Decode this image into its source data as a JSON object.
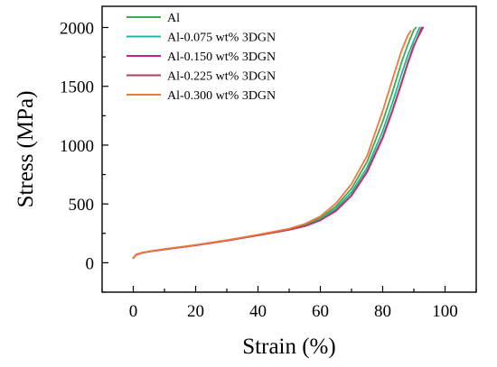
{
  "chart_data": {
    "type": "line",
    "title": "",
    "xlabel": "Strain (%)",
    "ylabel": "Stress (MPa)",
    "xlim": [
      -10,
      110
    ],
    "ylim": [
      -250,
      2180
    ],
    "xticks": [
      0,
      20,
      40,
      60,
      80,
      100
    ],
    "yticks": [
      0,
      500,
      1000,
      1500,
      2000
    ],
    "x_tick_labels": [
      "0",
      "20",
      "40",
      "60",
      "80",
      "100"
    ],
    "y_tick_labels": [
      "0",
      "500",
      "1000",
      "1500",
      "2000"
    ],
    "grid": false,
    "legend_position": "top-left",
    "series": [
      {
        "name": "Al",
        "color": "#3daa55",
        "x": [
          0,
          1,
          3,
          5,
          10,
          20,
          30,
          40,
          50,
          55,
          60,
          65,
          70,
          75,
          80,
          83,
          86,
          88,
          90,
          90.7
        ],
        "y": [
          40,
          70,
          85,
          95,
          115,
          150,
          190,
          235,
          285,
          320,
          380,
          480,
          630,
          860,
          1200,
          1440,
          1700,
          1850,
          1980,
          2000
        ]
      },
      {
        "name": "Al-0.075 wt% 3DGN",
        "color": "#22b5a6",
        "x": [
          0,
          1,
          3,
          5,
          10,
          20,
          30,
          40,
          50,
          55,
          60,
          65,
          70,
          75,
          80,
          83,
          86,
          88,
          90,
          91.8
        ],
        "y": [
          40,
          70,
          85,
          95,
          114,
          149,
          189,
          234,
          282,
          315,
          370,
          460,
          600,
          810,
          1120,
          1350,
          1600,
          1760,
          1890,
          2000
        ]
      },
      {
        "name": "Al-0.150 wt% 3DGN",
        "color": "#d6198a",
        "x": [
          0,
          1,
          3,
          5,
          10,
          20,
          30,
          40,
          50,
          55,
          60,
          65,
          70,
          75,
          80,
          83,
          86,
          88,
          90,
          92.5
        ],
        "y": [
          40,
          70,
          85,
          95,
          113,
          148,
          188,
          233,
          280,
          310,
          360,
          440,
          570,
          770,
          1060,
          1280,
          1520,
          1690,
          1840,
          2000
        ]
      },
      {
        "name": "Al-0.225 wt% 3DGN",
        "color": "#b0425a",
        "x": [
          0,
          1,
          3,
          5,
          10,
          20,
          30,
          40,
          50,
          55,
          60,
          65,
          70,
          75,
          80,
          83,
          86,
          88,
          90,
          93
        ],
        "y": [
          40,
          70,
          85,
          95,
          114,
          149,
          189,
          234,
          281,
          312,
          362,
          445,
          575,
          780,
          1070,
          1290,
          1530,
          1700,
          1850,
          2000
        ]
      },
      {
        "name": "Al-0.300 wt% 3DGN",
        "color": "#f07838",
        "x": [
          0,
          1,
          3,
          5,
          10,
          20,
          30,
          40,
          50,
          55,
          60,
          65,
          70,
          75,
          80,
          83,
          86,
          88,
          89
        ],
        "y": [
          40,
          72,
          87,
          97,
          117,
          152,
          192,
          238,
          290,
          330,
          395,
          505,
          670,
          910,
          1290,
          1550,
          1800,
          1930,
          1970
        ]
      }
    ]
  }
}
